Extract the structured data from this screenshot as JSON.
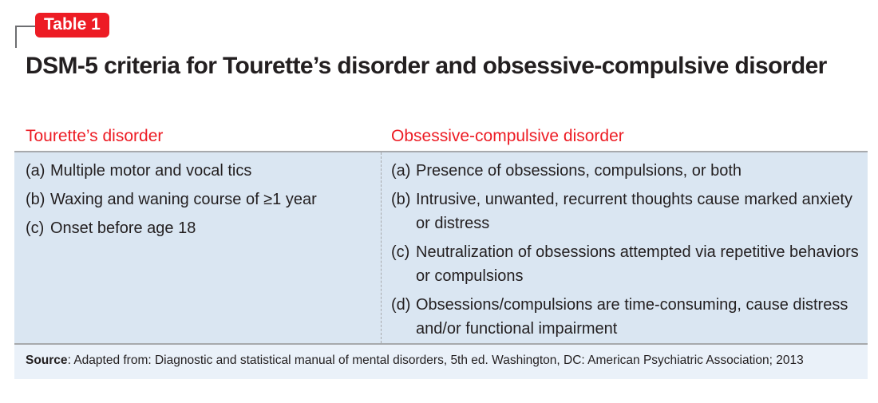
{
  "badge": "Table 1",
  "title": "DSM-5 criteria for Tourette’s disorder and obsessive-compulsive disorder",
  "columns": [
    "Tourette’s disorder",
    "Obsessive-compulsive disorder"
  ],
  "tourette": [
    {
      "label": "(a)",
      "text": "Multiple motor and vocal tics"
    },
    {
      "label": "(b)",
      "text": "Waxing and waning course of ≥1 year"
    },
    {
      "label": "(c)",
      "text": "Onset before age 18"
    }
  ],
  "ocd": [
    {
      "label": "(a)",
      "text": "Presence of obsessions, compulsions, or both"
    },
    {
      "label": "(b)",
      "text": "Intrusive, unwanted, recurrent thoughts cause marked anxiety or distress"
    },
    {
      "label": "(c)",
      "text": "Neutralization of obsessions attempted via repetitive behaviors or compulsions"
    },
    {
      "label": "(d)",
      "text": "Obsessions/compulsions are time-consuming, cause distress and/or functional impairment"
    }
  ],
  "source": {
    "label": "Source",
    "text": ": Adapted from: Diagnostic and statistical manual of mental disorders, 5th ed. Washington, DC: American Psychiatric Association; 2013"
  }
}
